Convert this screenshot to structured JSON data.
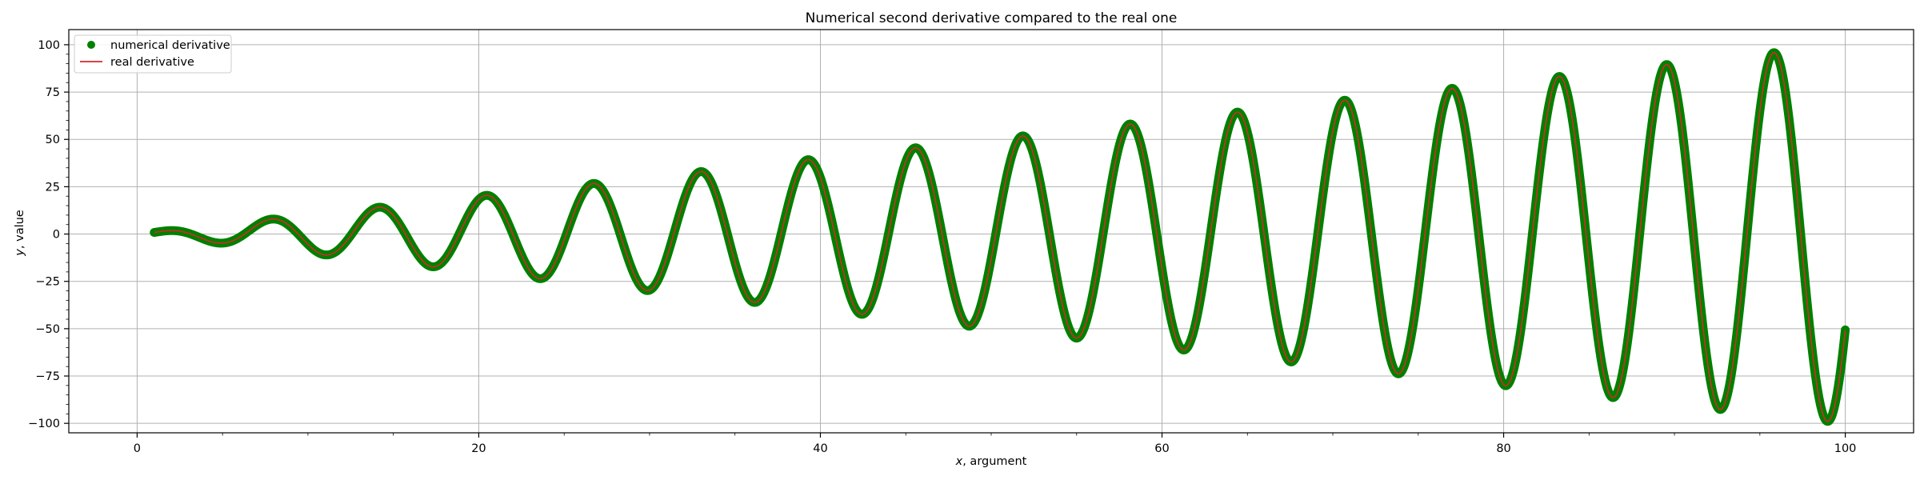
{
  "chart_data": {
    "type": "line",
    "title": "Numerical second derivative compared to the real one",
    "xlabel_var": "x",
    "xlabel_rest": ", argument",
    "ylabel_var": "y",
    "ylabel_rest": ", value",
    "xlim": [
      -4,
      104
    ],
    "ylim": [
      -105,
      108
    ],
    "x_ticks": [
      0,
      20,
      40,
      60,
      80,
      100
    ],
    "x_minor_ticks": [
      5,
      10,
      15,
      25,
      30,
      35,
      45,
      50,
      55,
      65,
      70,
      75,
      85,
      90,
      95
    ],
    "y_ticks": [
      -100,
      -75,
      -50,
      -25,
      0,
      25,
      50,
      75,
      100
    ],
    "grid": true,
    "legend_position": "upper-left",
    "function": {
      "expression": "x*sin(x)",
      "x_start": 1,
      "x_end": 100,
      "samples": 4000
    },
    "series": [
      {
        "name": "numerical derivative",
        "marker": "dot",
        "color": "#008000"
      },
      {
        "name": "real derivative",
        "marker": "line",
        "color": "#d62728"
      }
    ]
  }
}
